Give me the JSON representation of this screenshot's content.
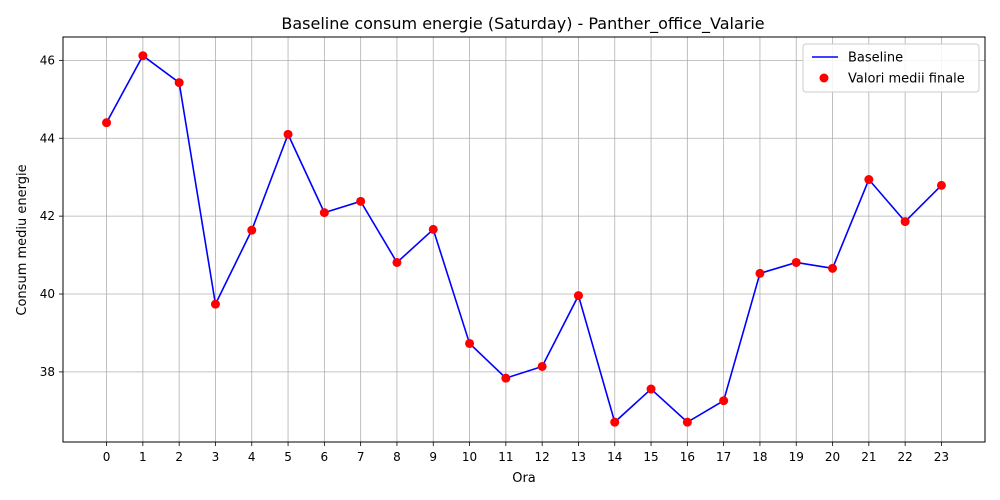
{
  "chart_data": {
    "type": "line",
    "title": "Baseline consum energie (Saturday) - Panther_office_Valarie",
    "xlabel": "Ora",
    "ylabel": "Consum mediu energie",
    "x": [
      0,
      1,
      2,
      3,
      4,
      5,
      6,
      7,
      8,
      9,
      10,
      11,
      12,
      13,
      14,
      15,
      16,
      17,
      18,
      19,
      20,
      21,
      22,
      23
    ],
    "x_tick_labels": [
      "0",
      "1",
      "2",
      "3",
      "4",
      "5",
      "6",
      "7",
      "8",
      "9",
      "10",
      "11",
      "12",
      "13",
      "14",
      "15",
      "16",
      "17",
      "18",
      "19",
      "20",
      "21",
      "22",
      "23"
    ],
    "xlim": [
      -1.2,
      24.2
    ],
    "ylim": [
      36.2,
      46.6
    ],
    "y_ticks": [
      38,
      40,
      42,
      44,
      46
    ],
    "y_tick_labels": [
      "38",
      "40",
      "42",
      "44",
      "46"
    ],
    "grid": true,
    "legend_position": "top-right",
    "series": [
      {
        "name": "Baseline",
        "kind": "line",
        "color": "#0000ff",
        "values": [
          44.4,
          46.12,
          45.43,
          39.74,
          41.64,
          44.1,
          42.09,
          42.38,
          40.81,
          41.66,
          38.73,
          37.84,
          38.14,
          39.96,
          36.71,
          37.56,
          36.71,
          37.26,
          40.53,
          40.81,
          40.66,
          42.94,
          41.86,
          42.79
        ]
      },
      {
        "name": "Valori medii finale",
        "kind": "scatter",
        "color": "#ff0000",
        "values": [
          44.4,
          46.12,
          45.43,
          39.74,
          41.64,
          44.1,
          42.09,
          42.38,
          40.81,
          41.66,
          38.73,
          37.84,
          38.14,
          39.96,
          36.71,
          37.56,
          36.71,
          37.26,
          40.53,
          40.81,
          40.66,
          42.94,
          41.86,
          42.79
        ]
      }
    ]
  }
}
